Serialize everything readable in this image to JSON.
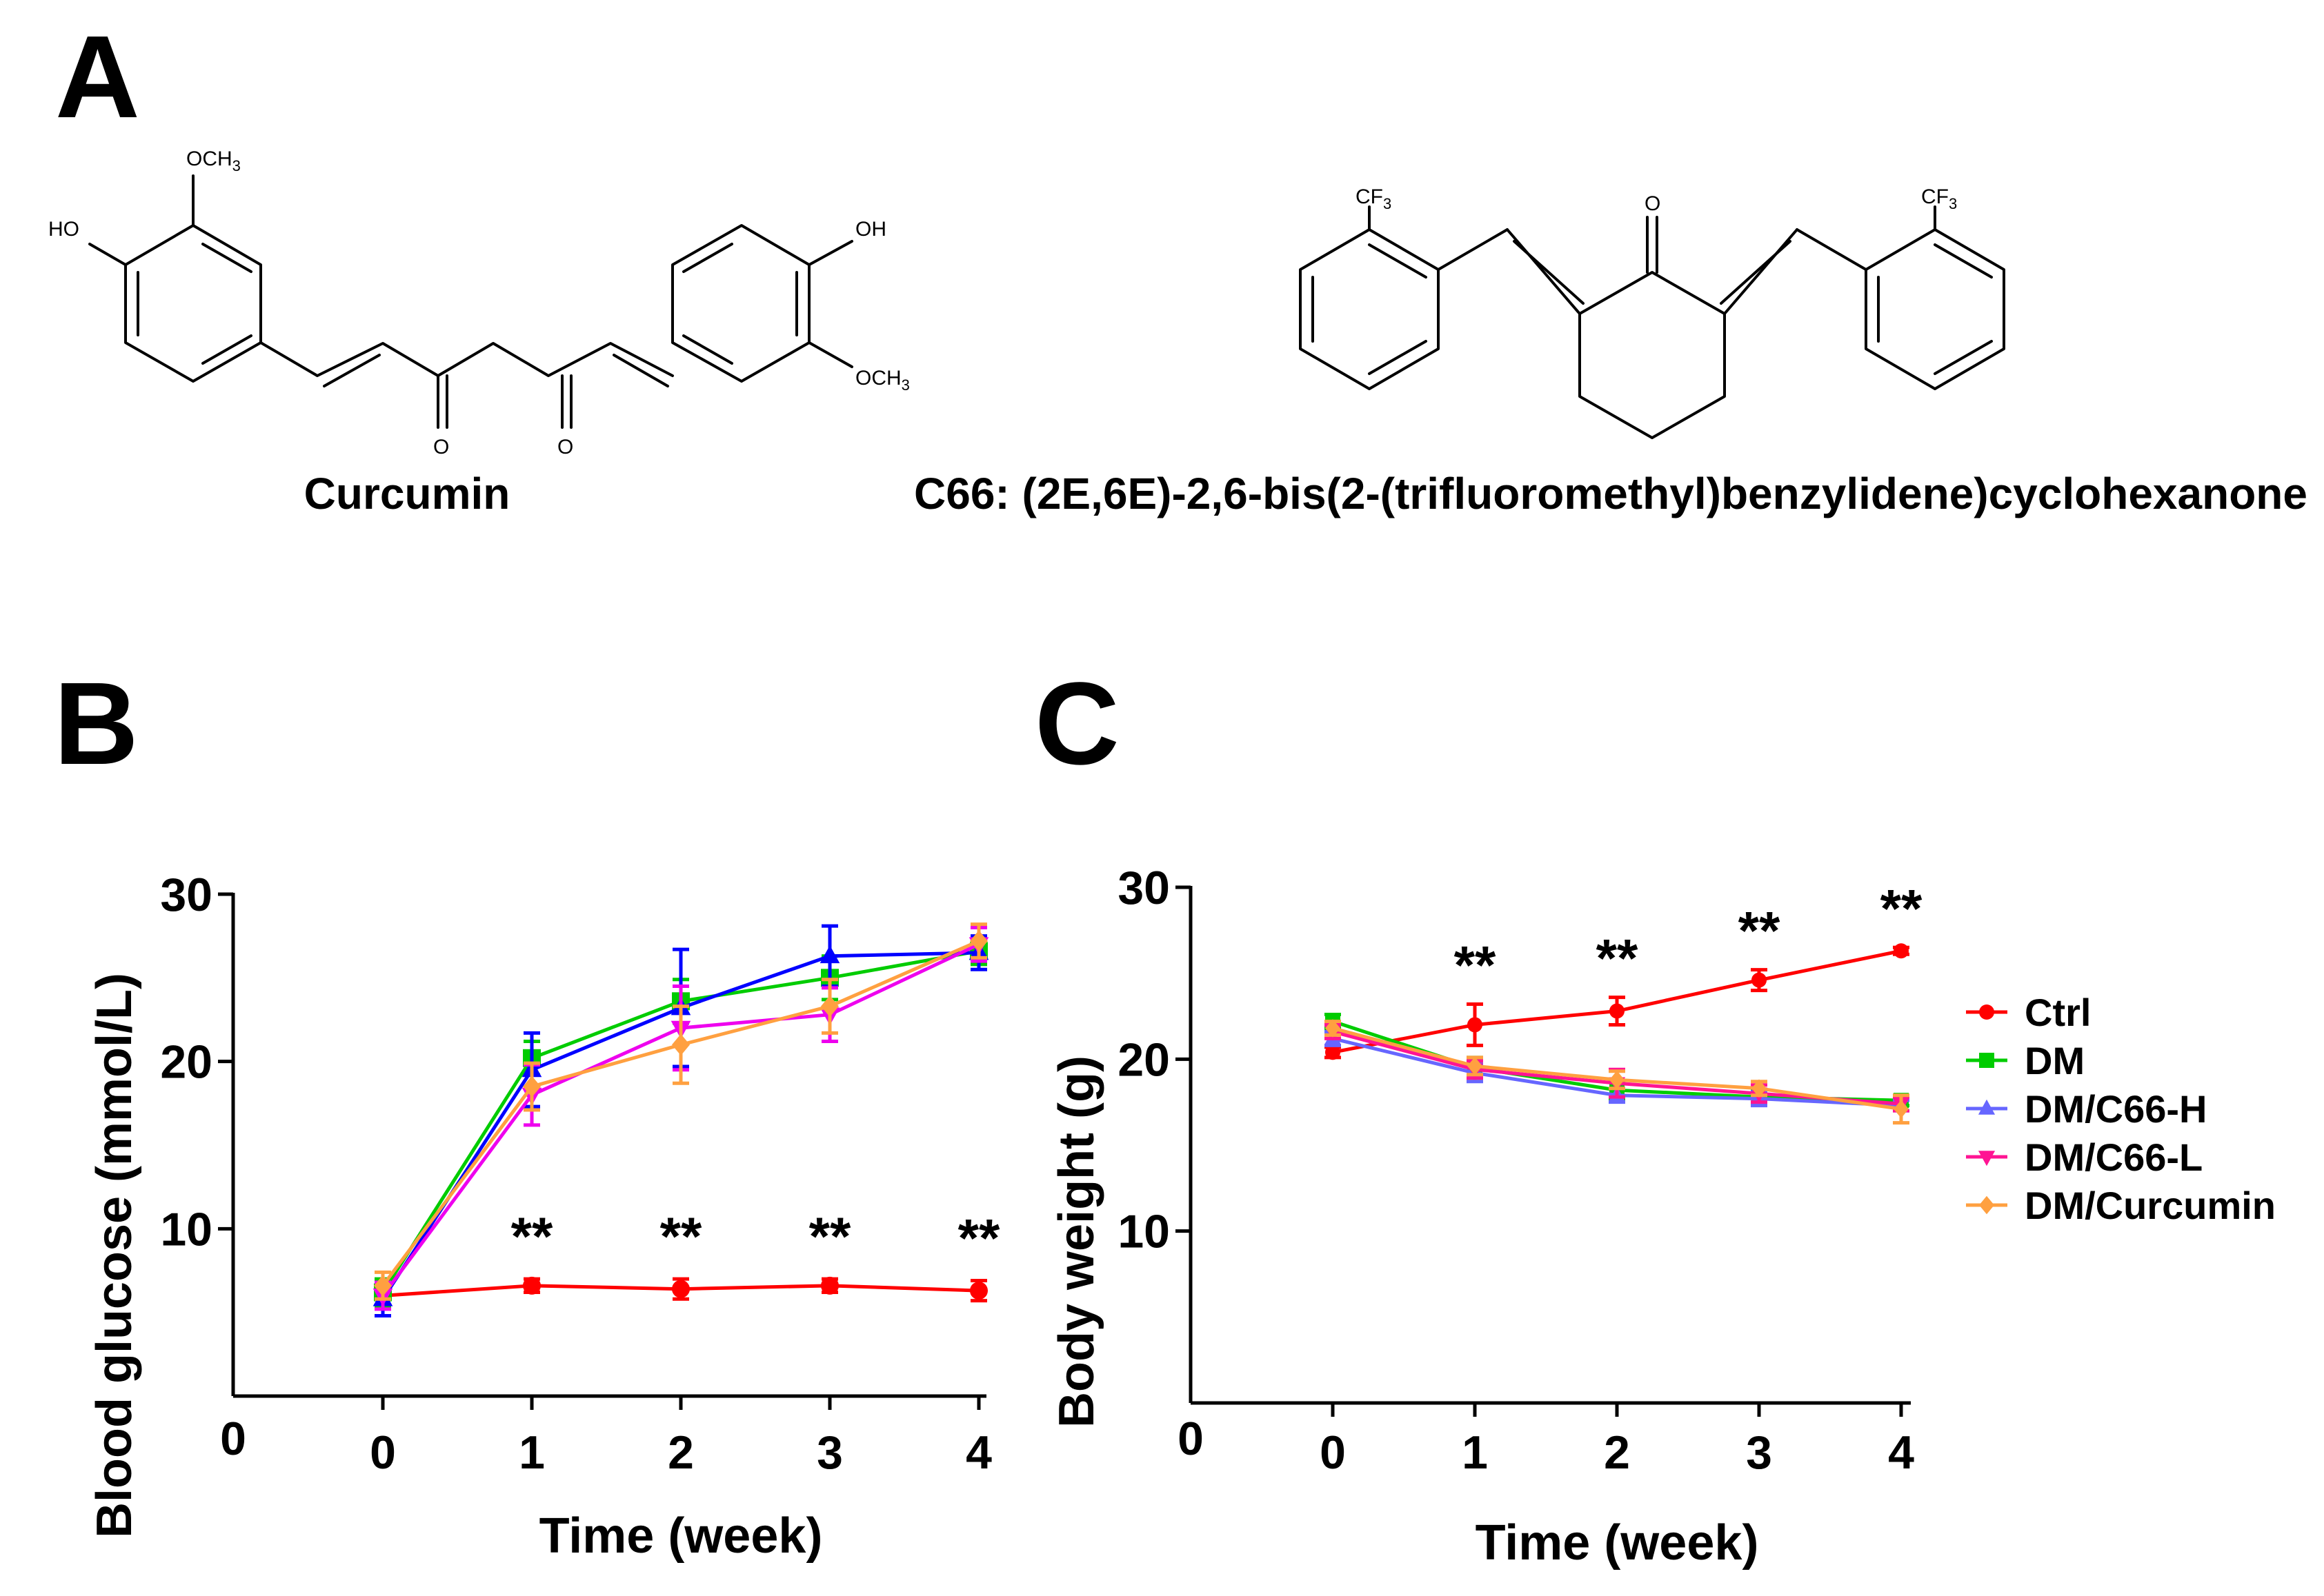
{
  "panels": {
    "a": {
      "letter": "A"
    },
    "b": {
      "letter": "B"
    },
    "c": {
      "letter": "C"
    }
  },
  "structures": {
    "curcumin": {
      "name": "Curcumin",
      "labels": {
        "och3_top": "OCH",
        "och3_top_sub": "3",
        "ho": "HO",
        "oh": "OH",
        "och3_right": "OCH",
        "och3_right_sub": "3",
        "o1": "O",
        "o2": "O"
      }
    },
    "c66": {
      "name": "C66: (2E,6E)-2,6-bis(2-(trifluoromethyl)benzylidene)cyclohexanone",
      "labels": {
        "cf3_left": "CF",
        "cf3_left_sub": "3",
        "cf3_right": "CF",
        "cf3_right_sub": "3",
        "o": "O"
      }
    }
  },
  "chart_data": [
    {
      "id": "blood-glucose",
      "type": "line",
      "title": "",
      "xlabel": "Time (week)",
      "ylabel": "Blood glucose (mmol/L)",
      "x": [
        0,
        1,
        2,
        3,
        4
      ],
      "xticks": [
        "0",
        "1",
        "2",
        "3",
        "4"
      ],
      "origin_label": "0",
      "ylim": [
        0,
        30
      ],
      "yticks": [
        10,
        20,
        30
      ],
      "series": [
        {
          "name": "Ctrl",
          "color": "#ff0000",
          "marker": "circle",
          "values": [
            6.0,
            6.6,
            6.4,
            6.6,
            6.3
          ],
          "errors": [
            0.6,
            0.4,
            0.6,
            0.4,
            0.6
          ]
        },
        {
          "name": "DM",
          "color": "#00cc00",
          "marker": "square",
          "values": [
            6.2,
            20.2,
            23.6,
            25.0,
            26.6
          ],
          "errors": [
            0.8,
            1.0,
            1.3,
            1.3,
            0.8
          ]
        },
        {
          "name": "DM/C66-H",
          "color": "#0000ff",
          "marker": "triangle",
          "values": [
            5.8,
            19.5,
            23.2,
            26.3,
            26.5
          ],
          "errors": [
            1.0,
            2.2,
            3.5,
            1.8,
            1.0
          ]
        },
        {
          "name": "DM/C66-L",
          "color": "#ee00ee",
          "marker": "triangle-down",
          "values": [
            6.0,
            18.0,
            22.0,
            22.8,
            27.0
          ],
          "errors": [
            0.8,
            1.8,
            2.5,
            1.6,
            1.0
          ]
        },
        {
          "name": "DM/Curcumin",
          "color": "#ffa040",
          "marker": "diamond",
          "values": [
            6.6,
            18.5,
            21.0,
            23.3,
            27.2
          ],
          "errors": [
            0.8,
            1.4,
            2.3,
            1.6,
            1.0
          ]
        }
      ],
      "annotations": [
        {
          "x": 1,
          "text": "**"
        },
        {
          "x": 2,
          "text": "**"
        },
        {
          "x": 3,
          "text": "**"
        },
        {
          "x": 4,
          "text": "**"
        }
      ]
    },
    {
      "id": "body-weight",
      "type": "line",
      "title": "",
      "xlabel": "Time (week)",
      "ylabel": "Body weight (g)",
      "x": [
        0,
        1,
        2,
        3,
        4
      ],
      "xticks": [
        "0",
        "1",
        "2",
        "3",
        "4"
      ],
      "origin_label": "0",
      "ylim": [
        0,
        30
      ],
      "yticks": [
        10,
        20,
        30
      ],
      "legend_position": "right",
      "series": [
        {
          "name": "Ctrl",
          "color": "#ff0000",
          "marker": "circle",
          "values": [
            20.4,
            22.0,
            22.8,
            24.6,
            26.3
          ],
          "errors": [
            0.3,
            1.2,
            0.8,
            0.6,
            0.2
          ]
        },
        {
          "name": "DM",
          "color": "#00cc00",
          "marker": "square",
          "values": [
            22.2,
            19.5,
            18.2,
            17.8,
            17.6
          ],
          "errors": [
            0.4,
            0.6,
            0.5,
            0.4,
            0.3
          ]
        },
        {
          "name": "DM/C66-H",
          "color": "#6666ff",
          "marker": "triangle",
          "values": [
            21.2,
            19.2,
            17.9,
            17.7,
            17.3
          ],
          "errors": [
            0.4,
            0.5,
            0.4,
            0.4,
            0.3
          ]
        },
        {
          "name": "DM/C66-L",
          "color": "#ff1493",
          "marker": "triangle-down",
          "values": [
            21.6,
            19.4,
            18.6,
            18.0,
            17.4
          ],
          "errors": [
            0.4,
            0.5,
            0.8,
            0.5,
            0.4
          ]
        },
        {
          "name": "DM/Curcumin",
          "color": "#ffa040",
          "marker": "diamond",
          "values": [
            21.8,
            19.6,
            18.8,
            18.3,
            17.1
          ],
          "errors": [
            0.4,
            0.5,
            0.5,
            0.4,
            0.8
          ]
        }
      ],
      "annotations": [
        {
          "x": 1,
          "text": "**"
        },
        {
          "x": 2,
          "text": "**"
        },
        {
          "x": 3,
          "text": "**"
        },
        {
          "x": 4,
          "text": "**"
        }
      ]
    }
  ]
}
